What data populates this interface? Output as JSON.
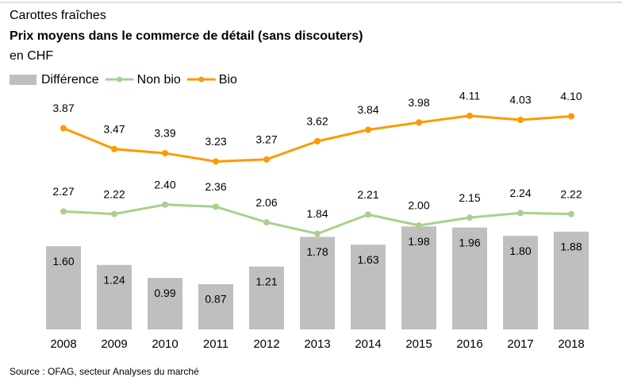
{
  "chart_data": {
    "type": "bar",
    "title": "Carottes fraîches",
    "subtitle": "Prix moyens dans le commerce de détail (sans discouters)",
    "unit_label": "en CHF",
    "source": "Source : OFAG, secteur Analyses du marché",
    "categories": [
      "2008",
      "2009",
      "2010",
      "2011",
      "2012",
      "2013",
      "2014",
      "2015",
      "2016",
      "2017",
      "2018"
    ],
    "series": [
      {
        "name": "Différence",
        "type": "bar",
        "color": "#bfbfbf",
        "values": [
          1.6,
          1.24,
          0.99,
          0.87,
          1.21,
          1.78,
          1.63,
          1.98,
          1.96,
          1.8,
          1.88
        ],
        "value_labels": [
          "1.60",
          "1.24",
          "0.99",
          "0.87",
          "1.21",
          "1.78",
          "1.63",
          "1.98",
          "1.96",
          "1.80",
          "1.88"
        ]
      },
      {
        "name": "Non bio",
        "type": "line",
        "color": "#a9d18e",
        "values": [
          2.27,
          2.22,
          2.4,
          2.36,
          2.06,
          1.84,
          2.21,
          2.0,
          2.15,
          2.24,
          2.22
        ],
        "value_labels": [
          "2.27",
          "2.22",
          "2.40",
          "2.36",
          "2.06",
          "1.84",
          "2.21",
          "2.00",
          "2.15",
          "2.24",
          "2.22"
        ]
      },
      {
        "name": "Bio",
        "type": "line",
        "color": "#ff9900",
        "values": [
          3.87,
          3.47,
          3.39,
          3.23,
          3.27,
          3.62,
          3.84,
          3.98,
          4.11,
          4.03,
          4.1
        ],
        "value_labels": [
          "3.87",
          "3.47",
          "3.39",
          "3.23",
          "3.27",
          "3.62",
          "3.84",
          "3.98",
          "4.11",
          "4.03",
          "4.10"
        ]
      }
    ]
  }
}
